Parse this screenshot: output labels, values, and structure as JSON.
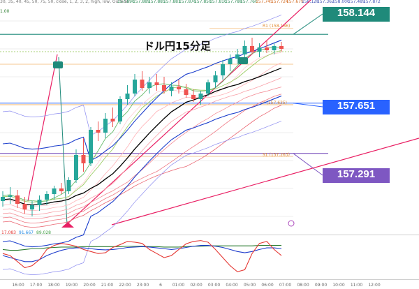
{
  "chart_data": {
    "type": "candlestick",
    "title": "ドル円15分足",
    "header_params": "30, 35, 40, 45, 50, 75, 50, close, 1, 2, 3, 2, high, low, Outside",
    "header_values": [
      "157.890",
      "157.889",
      "157.885",
      "157.881",
      "157.876",
      "157.850",
      "157.810",
      "157.788",
      "157.760",
      "157.745",
      "157.724",
      "157.679",
      "158.128",
      "157.362",
      "158.000",
      "157.489",
      "157.872"
    ],
    "top_left_value": "1.00",
    "price_labels": [
      {
        "value": "158.144",
        "color": "#1f8a7a"
      },
      {
        "value": "157.651",
        "color": "#2962ff"
      },
      {
        "value": "157.291",
        "color": "#7e57c2"
      }
    ],
    "level_tags": [
      {
        "text": "R1 (158.186)",
        "price": 158.186
      },
      {
        "text": "P (157.635)",
        "price": 157.635
      },
      {
        "text": "S1 (157.263)",
        "price": 157.263
      }
    ],
    "oscillator_readout": [
      "17.083",
      "91.667",
      "89.028"
    ],
    "x_tick_labels": [
      "16:00",
      "17:00",
      "18:00",
      "19:00",
      "20:00",
      "21:00",
      "22:00",
      "23:00",
      "6",
      "01:00",
      "02:00",
      "03:00",
      "04:00",
      "05:00",
      "06:00",
      "07:00",
      "08:00",
      "09:00",
      "10:00",
      "11:00",
      "12:00"
    ],
    "ylim": [
      156.8,
      158.32
    ],
    "candles": [
      [
        156.95,
        157.02,
        156.91,
        156.98
      ],
      [
        156.98,
        157.05,
        156.93,
        156.99
      ],
      [
        156.99,
        157.03,
        156.9,
        156.93
      ],
      [
        156.93,
        156.98,
        156.86,
        156.89
      ],
      [
        156.89,
        156.95,
        156.84,
        156.92
      ],
      [
        156.92,
        156.99,
        156.88,
        156.96
      ],
      [
        156.96,
        157.02,
        156.92,
        157.0
      ],
      [
        157.0,
        157.06,
        156.96,
        157.04
      ],
      [
        157.04,
        157.08,
        157.0,
        157.02
      ],
      [
        157.02,
        157.12,
        157.0,
        157.1
      ],
      [
        157.1,
        157.32,
        157.08,
        157.28
      ],
      [
        157.28,
        157.4,
        157.16,
        157.22
      ],
      [
        157.22,
        157.48,
        157.2,
        157.46
      ],
      [
        157.46,
        157.52,
        157.38,
        157.44
      ],
      [
        157.44,
        157.58,
        157.4,
        157.54
      ],
      [
        157.54,
        157.62,
        157.48,
        157.52
      ],
      [
        157.52,
        157.7,
        157.5,
        157.68
      ],
      [
        157.68,
        157.78,
        157.64,
        157.72
      ],
      [
        157.72,
        157.86,
        157.7,
        157.82
      ],
      [
        157.82,
        157.88,
        157.74,
        157.76
      ],
      [
        157.76,
        157.84,
        157.72,
        157.8
      ],
      [
        157.8,
        157.86,
        157.74,
        157.78
      ],
      [
        157.78,
        157.84,
        157.72,
        157.74
      ],
      [
        157.74,
        157.8,
        157.7,
        157.77
      ],
      [
        157.77,
        157.82,
        157.72,
        157.75
      ],
      [
        157.75,
        157.79,
        157.69,
        157.71
      ],
      [
        157.71,
        157.75,
        157.66,
        157.68
      ],
      [
        157.68,
        157.74,
        157.64,
        157.72
      ],
      [
        157.72,
        157.82,
        157.7,
        157.8
      ],
      [
        157.8,
        157.88,
        157.76,
        157.85
      ],
      [
        157.85,
        157.96,
        157.82,
        157.93
      ],
      [
        157.93,
        158.0,
        157.88,
        157.97
      ],
      [
        157.97,
        158.04,
        157.93,
        158.0
      ],
      [
        158.0,
        158.1,
        157.96,
        158.06
      ],
      [
        158.06,
        158.12,
        158.0,
        158.02
      ],
      [
        158.02,
        158.08,
        157.98,
        158.05
      ],
      [
        158.05,
        158.1,
        158.01,
        158.03
      ],
      [
        158.03,
        158.08,
        158.0,
        158.06
      ],
      [
        158.06,
        158.09,
        158.02,
        158.04
      ]
    ]
  }
}
